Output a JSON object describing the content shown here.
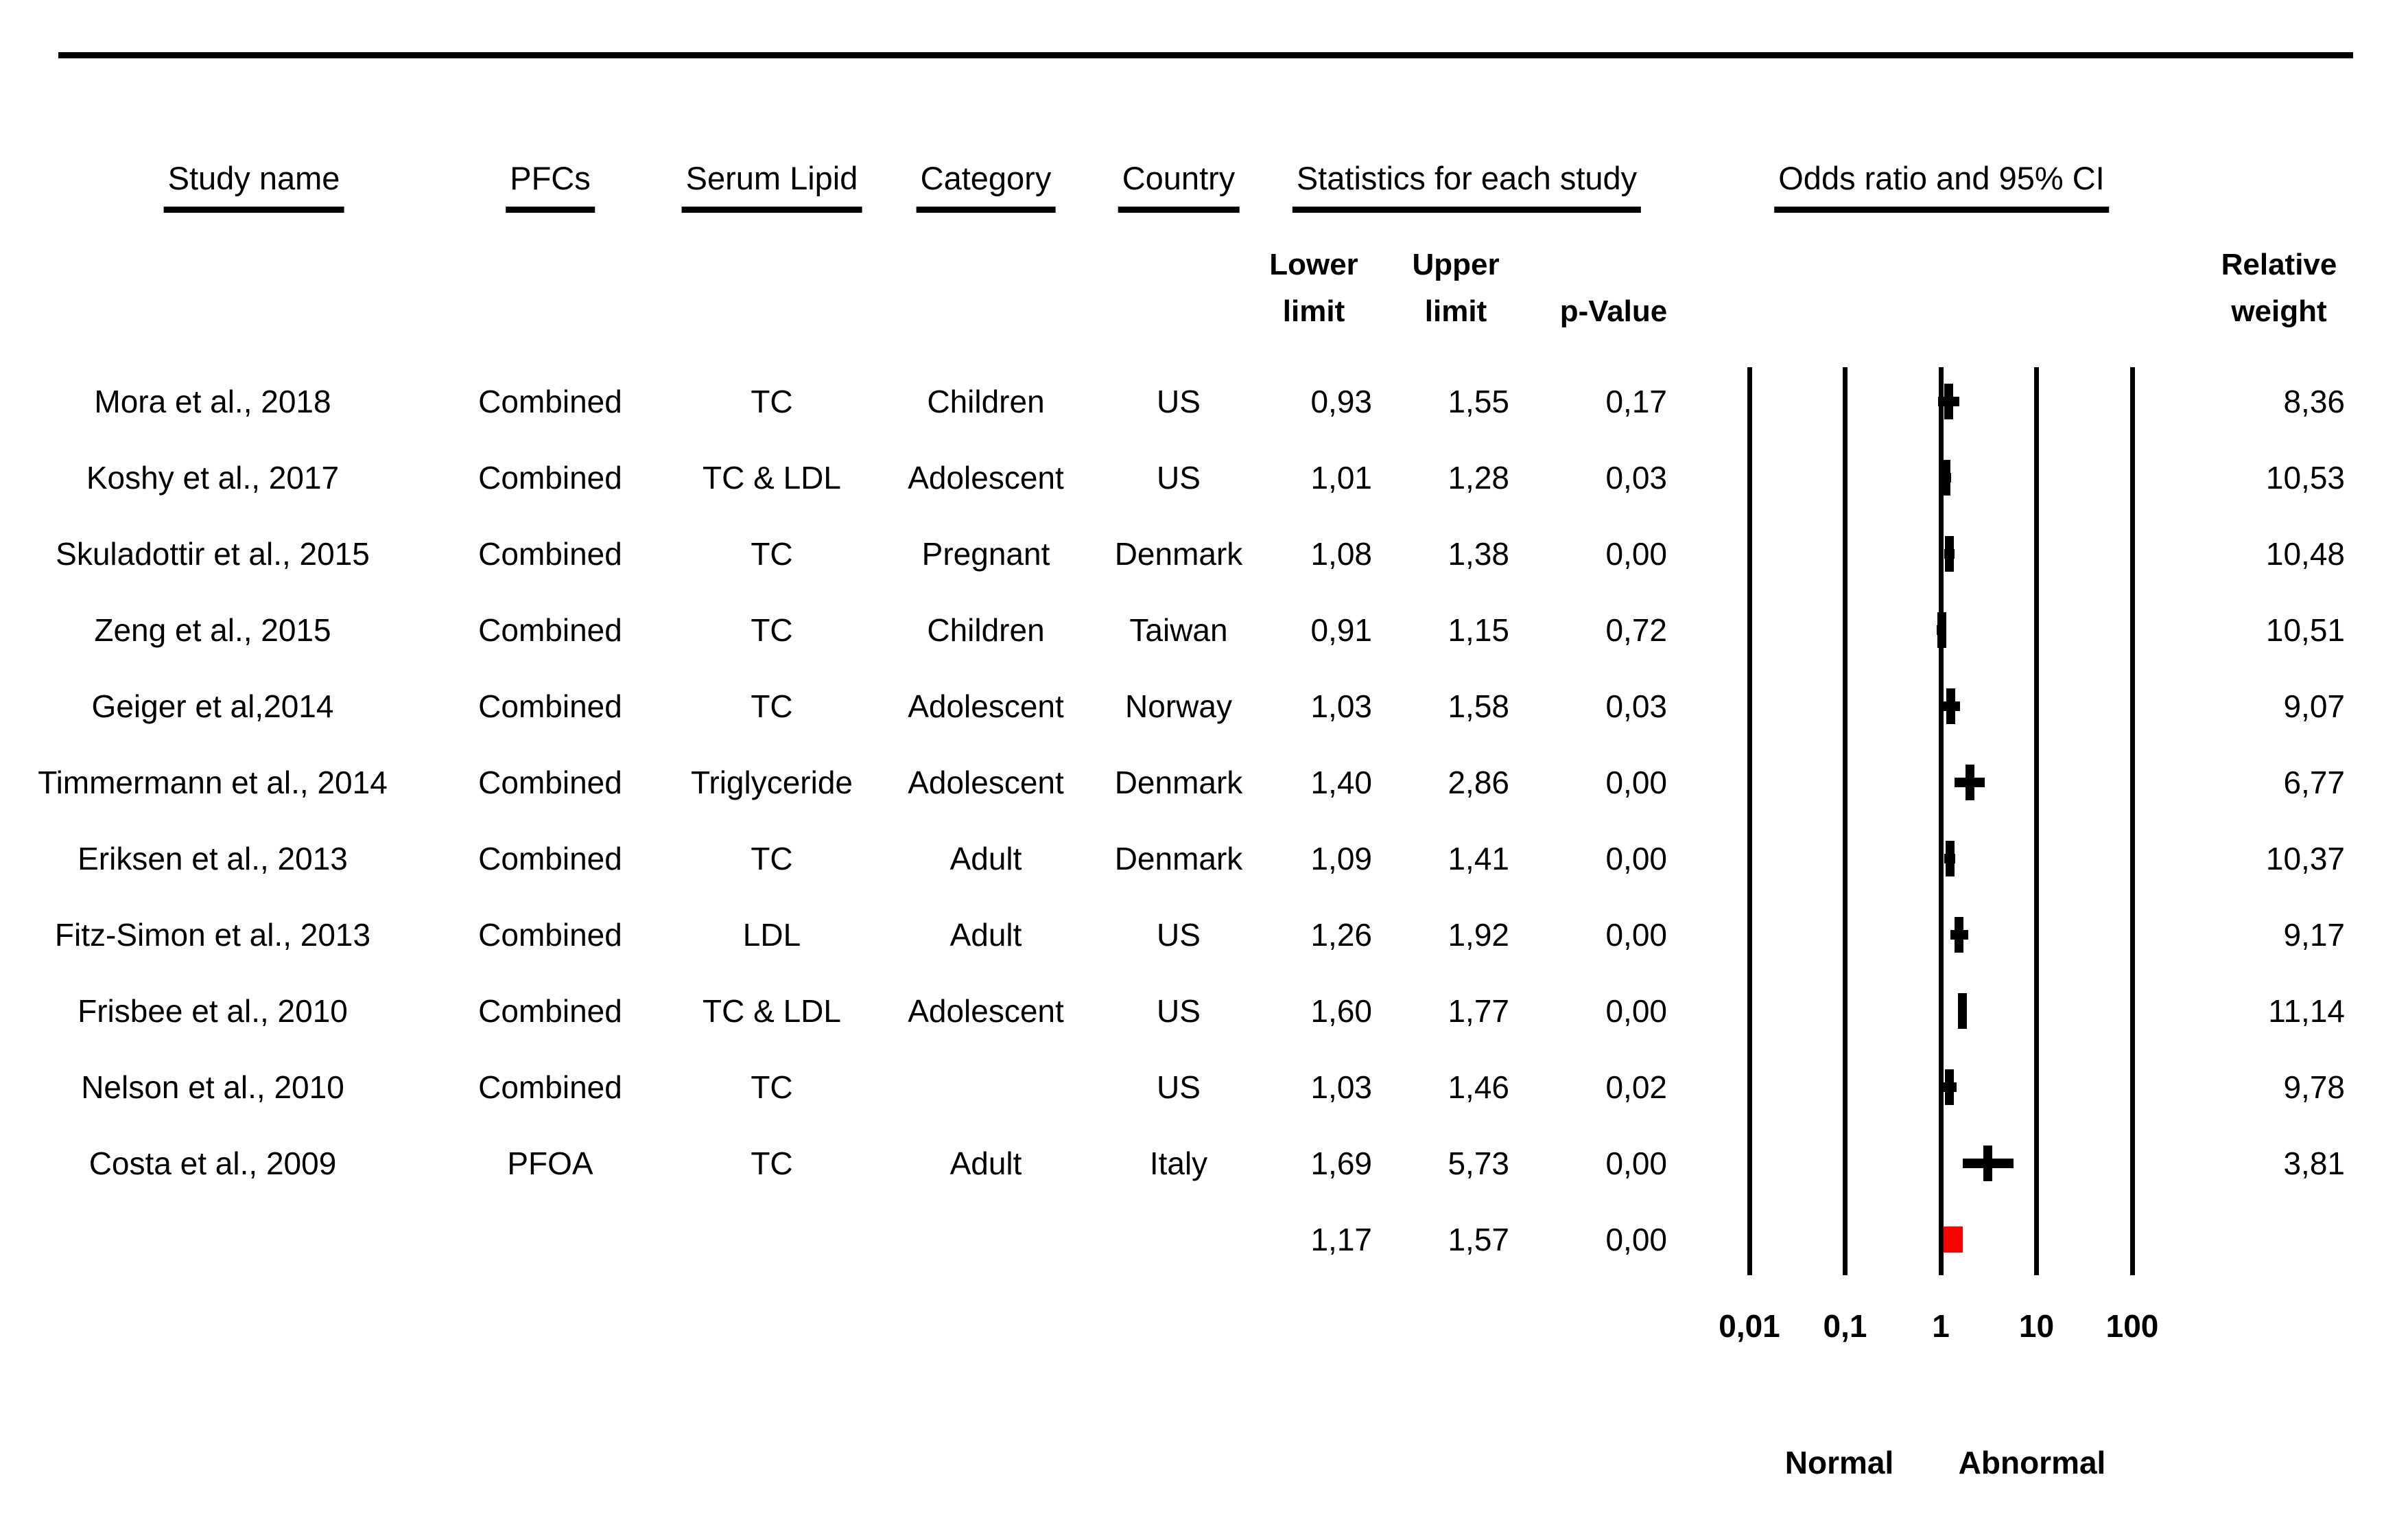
{
  "colors": {
    "foreground": "#000000",
    "background": "#ffffff",
    "summary_marker": "#ff0000"
  },
  "header": {
    "study_name": "Study name",
    "pfcs": "PFCs",
    "serum_lipid": "Serum Lipid",
    "category": "Category",
    "country": "Country",
    "statistics": "Statistics for each study",
    "odds_ratio": "Odds ratio and 95% CI",
    "lower_limit": "Lower\nlimit",
    "upper_limit": "Upper\nlimit",
    "p_value": "p-Value",
    "relative_weight": "Relative\nweight"
  },
  "rows": [
    {
      "study": "Mora et al., 2018",
      "pfcs": "Combined",
      "lipid": "TC",
      "category": "Children",
      "country": "US",
      "lower": "0,93",
      "upper": "1,55",
      "p": "0,17",
      "weight": "8,36"
    },
    {
      "study": "Koshy et al., 2017",
      "pfcs": "Combined",
      "lipid": "TC & LDL",
      "category": "Adolescent",
      "country": "US",
      "lower": "1,01",
      "upper": "1,28",
      "p": "0,03",
      "weight": "10,53"
    },
    {
      "study": "Skuladottir et al., 2015",
      "pfcs": "Combined",
      "lipid": "TC",
      "category": "Pregnant",
      "country": "Denmark",
      "lower": "1,08",
      "upper": "1,38",
      "p": "0,00",
      "weight": "10,48"
    },
    {
      "study": "Zeng et al., 2015",
      "pfcs": "Combined",
      "lipid": "TC",
      "category": "Children",
      "country": "Taiwan",
      "lower": "0,91",
      "upper": "1,15",
      "p": "0,72",
      "weight": "10,51"
    },
    {
      "study": "Geiger et al,2014",
      "pfcs": "Combined",
      "lipid": "TC",
      "category": "Adolescent",
      "country": "Norway",
      "lower": "1,03",
      "upper": "1,58",
      "p": "0,03",
      "weight": "9,07"
    },
    {
      "study": "Timmermann et al., 2014",
      "pfcs": "Combined",
      "lipid": "Triglyceride",
      "category": "Adolescent",
      "country": "Denmark",
      "lower": "1,40",
      "upper": "2,86",
      "p": "0,00",
      "weight": "6,77"
    },
    {
      "study": "Eriksen et al., 2013",
      "pfcs": "Combined",
      "lipid": "TC",
      "category": "Adult",
      "country": "Denmark",
      "lower": "1,09",
      "upper": "1,41",
      "p": "0,00",
      "weight": "10,37"
    },
    {
      "study": "Fitz-Simon et al., 2013",
      "pfcs": "Combined",
      "lipid": "LDL",
      "category": "Adult",
      "country": "US",
      "lower": "1,26",
      "upper": "1,92",
      "p": "0,00",
      "weight": "9,17"
    },
    {
      "study": "Frisbee et al., 2010",
      "pfcs": "Combined",
      "lipid": "TC & LDL",
      "category": "Adolescent",
      "country": "US",
      "lower": "1,60",
      "upper": "1,77",
      "p": "0,00",
      "weight": "11,14"
    },
    {
      "study": "Nelson et al., 2010",
      "pfcs": "Combined",
      "lipid": "TC",
      "category": "",
      "country": "US",
      "lower": "1,03",
      "upper": "1,46",
      "p": "0,02",
      "weight": "9,78"
    },
    {
      "study": "Costa et al., 2009",
      "pfcs": "PFOA",
      "lipid": "TC",
      "category": "Adult",
      "country": "Italy",
      "lower": "1,69",
      "upper": "5,73",
      "p": "0,00",
      "weight": "3,81"
    }
  ],
  "summary": {
    "lower": "1,17",
    "upper": "1,57",
    "p": "0,00"
  },
  "axis": {
    "tick_labels": [
      "0,01",
      "0,1",
      "1",
      "10",
      "100"
    ],
    "left_label": "Normal",
    "right_label": "Abnormal"
  },
  "chart_data": {
    "type": "forest",
    "title": "",
    "x_scale": "log10",
    "x_range": [
      0.01,
      100
    ],
    "x_ticks": [
      0.01,
      0.1,
      1,
      10,
      100
    ],
    "x_tick_labels": [
      "0,01",
      "0,1",
      "1",
      "10",
      "100"
    ],
    "axis_region_labels": {
      "left_of_1": "Normal",
      "right_of_1": "Abnormal"
    },
    "grid": "vertical-lines-at-ticks",
    "studies": [
      {
        "name": "Mora et al., 2018",
        "pfcs": "Combined",
        "serum_lipid": "TC",
        "category": "Children",
        "country": "US",
        "lower": 0.93,
        "upper": 1.55,
        "p_value": 0.17,
        "or_estimate": 1.2,
        "relative_weight": 8.36
      },
      {
        "name": "Koshy et al., 2017",
        "pfcs": "Combined",
        "serum_lipid": "TC & LDL",
        "category": "Adolescent",
        "country": "US",
        "lower": 1.01,
        "upper": 1.28,
        "p_value": 0.03,
        "or_estimate": 1.14,
        "relative_weight": 10.53
      },
      {
        "name": "Skuladottir et al., 2015",
        "pfcs": "Combined",
        "serum_lipid": "TC",
        "category": "Pregnant",
        "country": "Denmark",
        "lower": 1.08,
        "upper": 1.38,
        "p_value": 0.0,
        "or_estimate": 1.22,
        "relative_weight": 10.48
      },
      {
        "name": "Zeng et al., 2015",
        "pfcs": "Combined",
        "serum_lipid": "TC",
        "category": "Children",
        "country": "Taiwan",
        "lower": 0.91,
        "upper": 1.15,
        "p_value": 0.72,
        "or_estimate": 1.02,
        "relative_weight": 10.51
      },
      {
        "name": "Geiger et al,2014",
        "pfcs": "Combined",
        "serum_lipid": "TC",
        "category": "Adolescent",
        "country": "Norway",
        "lower": 1.03,
        "upper": 1.58,
        "p_value": 0.03,
        "or_estimate": 1.28,
        "relative_weight": 9.07
      },
      {
        "name": "Timmermann et al., 2014",
        "pfcs": "Combined",
        "serum_lipid": "Triglyceride",
        "category": "Adolescent",
        "country": "Denmark",
        "lower": 1.4,
        "upper": 2.86,
        "p_value": 0.0,
        "or_estimate": 2.0,
        "relative_weight": 6.77
      },
      {
        "name": "Eriksen et al., 2013",
        "pfcs": "Combined",
        "serum_lipid": "TC",
        "category": "Adult",
        "country": "Denmark",
        "lower": 1.09,
        "upper": 1.41,
        "p_value": 0.0,
        "or_estimate": 1.24,
        "relative_weight": 10.37
      },
      {
        "name": "Fitz-Simon et al., 2013",
        "pfcs": "Combined",
        "serum_lipid": "LDL",
        "category": "Adult",
        "country": "US",
        "lower": 1.26,
        "upper": 1.92,
        "p_value": 0.0,
        "or_estimate": 1.56,
        "relative_weight": 9.17
      },
      {
        "name": "Frisbee et al., 2010",
        "pfcs": "Combined",
        "serum_lipid": "TC & LDL",
        "category": "Adolescent",
        "country": "US",
        "lower": 1.6,
        "upper": 1.77,
        "p_value": 0.0,
        "or_estimate": 1.68,
        "relative_weight": 11.14
      },
      {
        "name": "Nelson et al., 2010",
        "pfcs": "Combined",
        "serum_lipid": "TC",
        "category": "",
        "country": "US",
        "lower": 1.03,
        "upper": 1.46,
        "p_value": 0.02,
        "or_estimate": 1.23,
        "relative_weight": 9.78
      },
      {
        "name": "Costa et al., 2009",
        "pfcs": "PFOA",
        "serum_lipid": "TC",
        "category": "Adult",
        "country": "Italy",
        "lower": 1.69,
        "upper": 5.73,
        "p_value": 0.0,
        "or_estimate": 3.11,
        "relative_weight": 3.81
      }
    ],
    "summary": {
      "lower": 1.17,
      "upper": 1.57,
      "p_value": 0.0,
      "or_estimate": 1.36,
      "marker": "red-filled-square"
    }
  }
}
